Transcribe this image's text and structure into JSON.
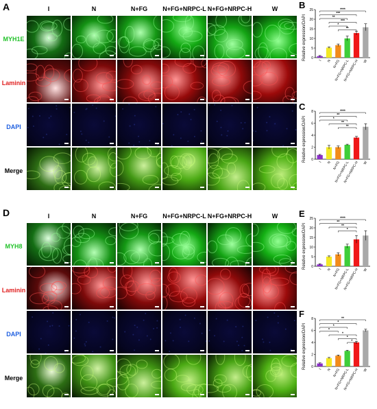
{
  "sections": [
    {
      "letter": "A",
      "columns": [
        "I",
        "N",
        "N+FG",
        "N+FG+NRPC-L",
        "N+FG+NRPC-H",
        "W"
      ],
      "rows": [
        {
          "label": "MYH1E",
          "color": "#22c22a",
          "stain": "green"
        },
        {
          "label": "Laminin",
          "color": "#e02020",
          "stain": "red"
        },
        {
          "label": "DAPI",
          "color": "#2060e0",
          "stain": "blue"
        },
        {
          "label": "Merge",
          "color": "#000000",
          "stain": "merge"
        }
      ]
    },
    {
      "letter": "D",
      "columns": [
        "I",
        "N",
        "N+FG",
        "N+FG+NRPC-L",
        "N+FG+NRPC-H",
        "W"
      ],
      "rows": [
        {
          "label": "MYH8",
          "color": "#22c22a",
          "stain": "green"
        },
        {
          "label": "Laminin",
          "color": "#e02020",
          "stain": "red"
        },
        {
          "label": "DAPI",
          "color": "#2060e0",
          "stain": "blue"
        },
        {
          "label": "Merge",
          "color": "#000000",
          "stain": "merge"
        }
      ]
    }
  ],
  "chart_data": [
    {
      "letter": "B",
      "type": "bar",
      "ylabel": "Relative expression/DAPI",
      "categories": [
        "I",
        "N",
        "N+FG",
        "N+FG+NRPC-L",
        "N+FG+NRPC-H",
        "W"
      ],
      "values": [
        0.8,
        5.2,
        6.5,
        10.0,
        12.8,
        15.8
      ],
      "errors": [
        0.3,
        0.4,
        0.6,
        1.2,
        1.0,
        1.8
      ],
      "ylim": [
        0,
        25
      ],
      "yticks": [
        0,
        5,
        10,
        15,
        20,
        25
      ],
      "colors": [
        "#8b2fc9",
        "#f2e825",
        "#f28c1a",
        "#3fce3a",
        "#f01818",
        "#a9a9a9"
      ],
      "significance": [
        {
          "from": 0,
          "to": 5,
          "label": "****"
        },
        {
          "from": 0,
          "to": 4,
          "label": "***"
        },
        {
          "from": 0,
          "to": 3,
          "label": "**"
        },
        {
          "from": 1,
          "to": 4,
          "label": "***"
        },
        {
          "from": 1,
          "to": 3,
          "label": "*"
        },
        {
          "from": 2,
          "to": 4,
          "label": "**"
        }
      ]
    },
    {
      "letter": "C",
      "type": "bar",
      "ylabel": "Relative expression/DAPI",
      "categories": [
        "I",
        "N",
        "N+FG",
        "N+FG+NRPC-L",
        "N+FG+NRPC-H",
        "W"
      ],
      "values": [
        0.7,
        2.0,
        2.0,
        2.4,
        3.6,
        5.4
      ],
      "errors": [
        0.1,
        0.3,
        0.2,
        0.1,
        0.2,
        0.5
      ],
      "ylim": [
        0,
        8
      ],
      "yticks": [
        0,
        2,
        4,
        6,
        8
      ],
      "colors": [
        "#8b2fc9",
        "#f2e825",
        "#f28c1a",
        "#3fce3a",
        "#f01818",
        "#a9a9a9"
      ],
      "significance": [
        {
          "from": 0,
          "to": 5,
          "label": "****"
        },
        {
          "from": 0,
          "to": 4,
          "label": "**"
        },
        {
          "from": 0,
          "to": 3,
          "label": "*"
        },
        {
          "from": 1,
          "to": 4,
          "label": "**"
        },
        {
          "from": 2,
          "to": 4,
          "label": "**"
        }
      ]
    },
    {
      "letter": "E",
      "type": "bar",
      "ylabel": "Relative expression/DAPI",
      "categories": [
        "I",
        "N",
        "N+FG",
        "N+FG+NRPC-L",
        "N+FG+NRPC-H",
        "W"
      ],
      "values": [
        1.0,
        5.0,
        6.2,
        10.5,
        14.0,
        16.0
      ],
      "errors": [
        0.3,
        0.4,
        0.8,
        1.0,
        2.0,
        2.5
      ],
      "ylim": [
        0,
        25
      ],
      "yticks": [
        0,
        5,
        10,
        15,
        20,
        25
      ],
      "colors": [
        "#8b2fc9",
        "#f2e825",
        "#f28c1a",
        "#3fce3a",
        "#f01818",
        "#a9a9a9"
      ],
      "significance": [
        {
          "from": 0,
          "to": 5,
          "label": "****"
        },
        {
          "from": 0,
          "to": 4,
          "label": "**"
        },
        {
          "from": 1,
          "to": 4,
          "label": "**"
        },
        {
          "from": 2,
          "to": 4,
          "label": "*"
        }
      ]
    },
    {
      "letter": "F",
      "type": "bar",
      "ylabel": "Relative expression/DAPI",
      "categories": [
        "I",
        "N",
        "N+FG",
        "N+FG+NRPC-L",
        "N+FG+NRPC-H",
        "W"
      ],
      "values": [
        0.5,
        1.4,
        1.8,
        2.6,
        4.0,
        6.0
      ],
      "errors": [
        0.1,
        0.1,
        0.1,
        0.1,
        0.2,
        0.2
      ],
      "ylim": [
        0,
        8
      ],
      "yticks": [
        0,
        2,
        4,
        6,
        8
      ],
      "colors": [
        "#8b2fc9",
        "#f2e825",
        "#f28c1a",
        "#3fce3a",
        "#f01818",
        "#a9a9a9"
      ],
      "significance": [
        {
          "from": 0,
          "to": 5,
          "label": "**"
        },
        {
          "from": 0,
          "to": 4,
          "label": "*"
        },
        {
          "from": 0,
          "to": 3,
          "label": "*"
        },
        {
          "from": 0,
          "to": 2,
          "label": "*"
        },
        {
          "from": 1,
          "to": 4,
          "label": "*"
        },
        {
          "from": 2,
          "to": 4,
          "label": "*"
        },
        {
          "from": 3,
          "to": 4,
          "label": "*"
        }
      ]
    }
  ]
}
